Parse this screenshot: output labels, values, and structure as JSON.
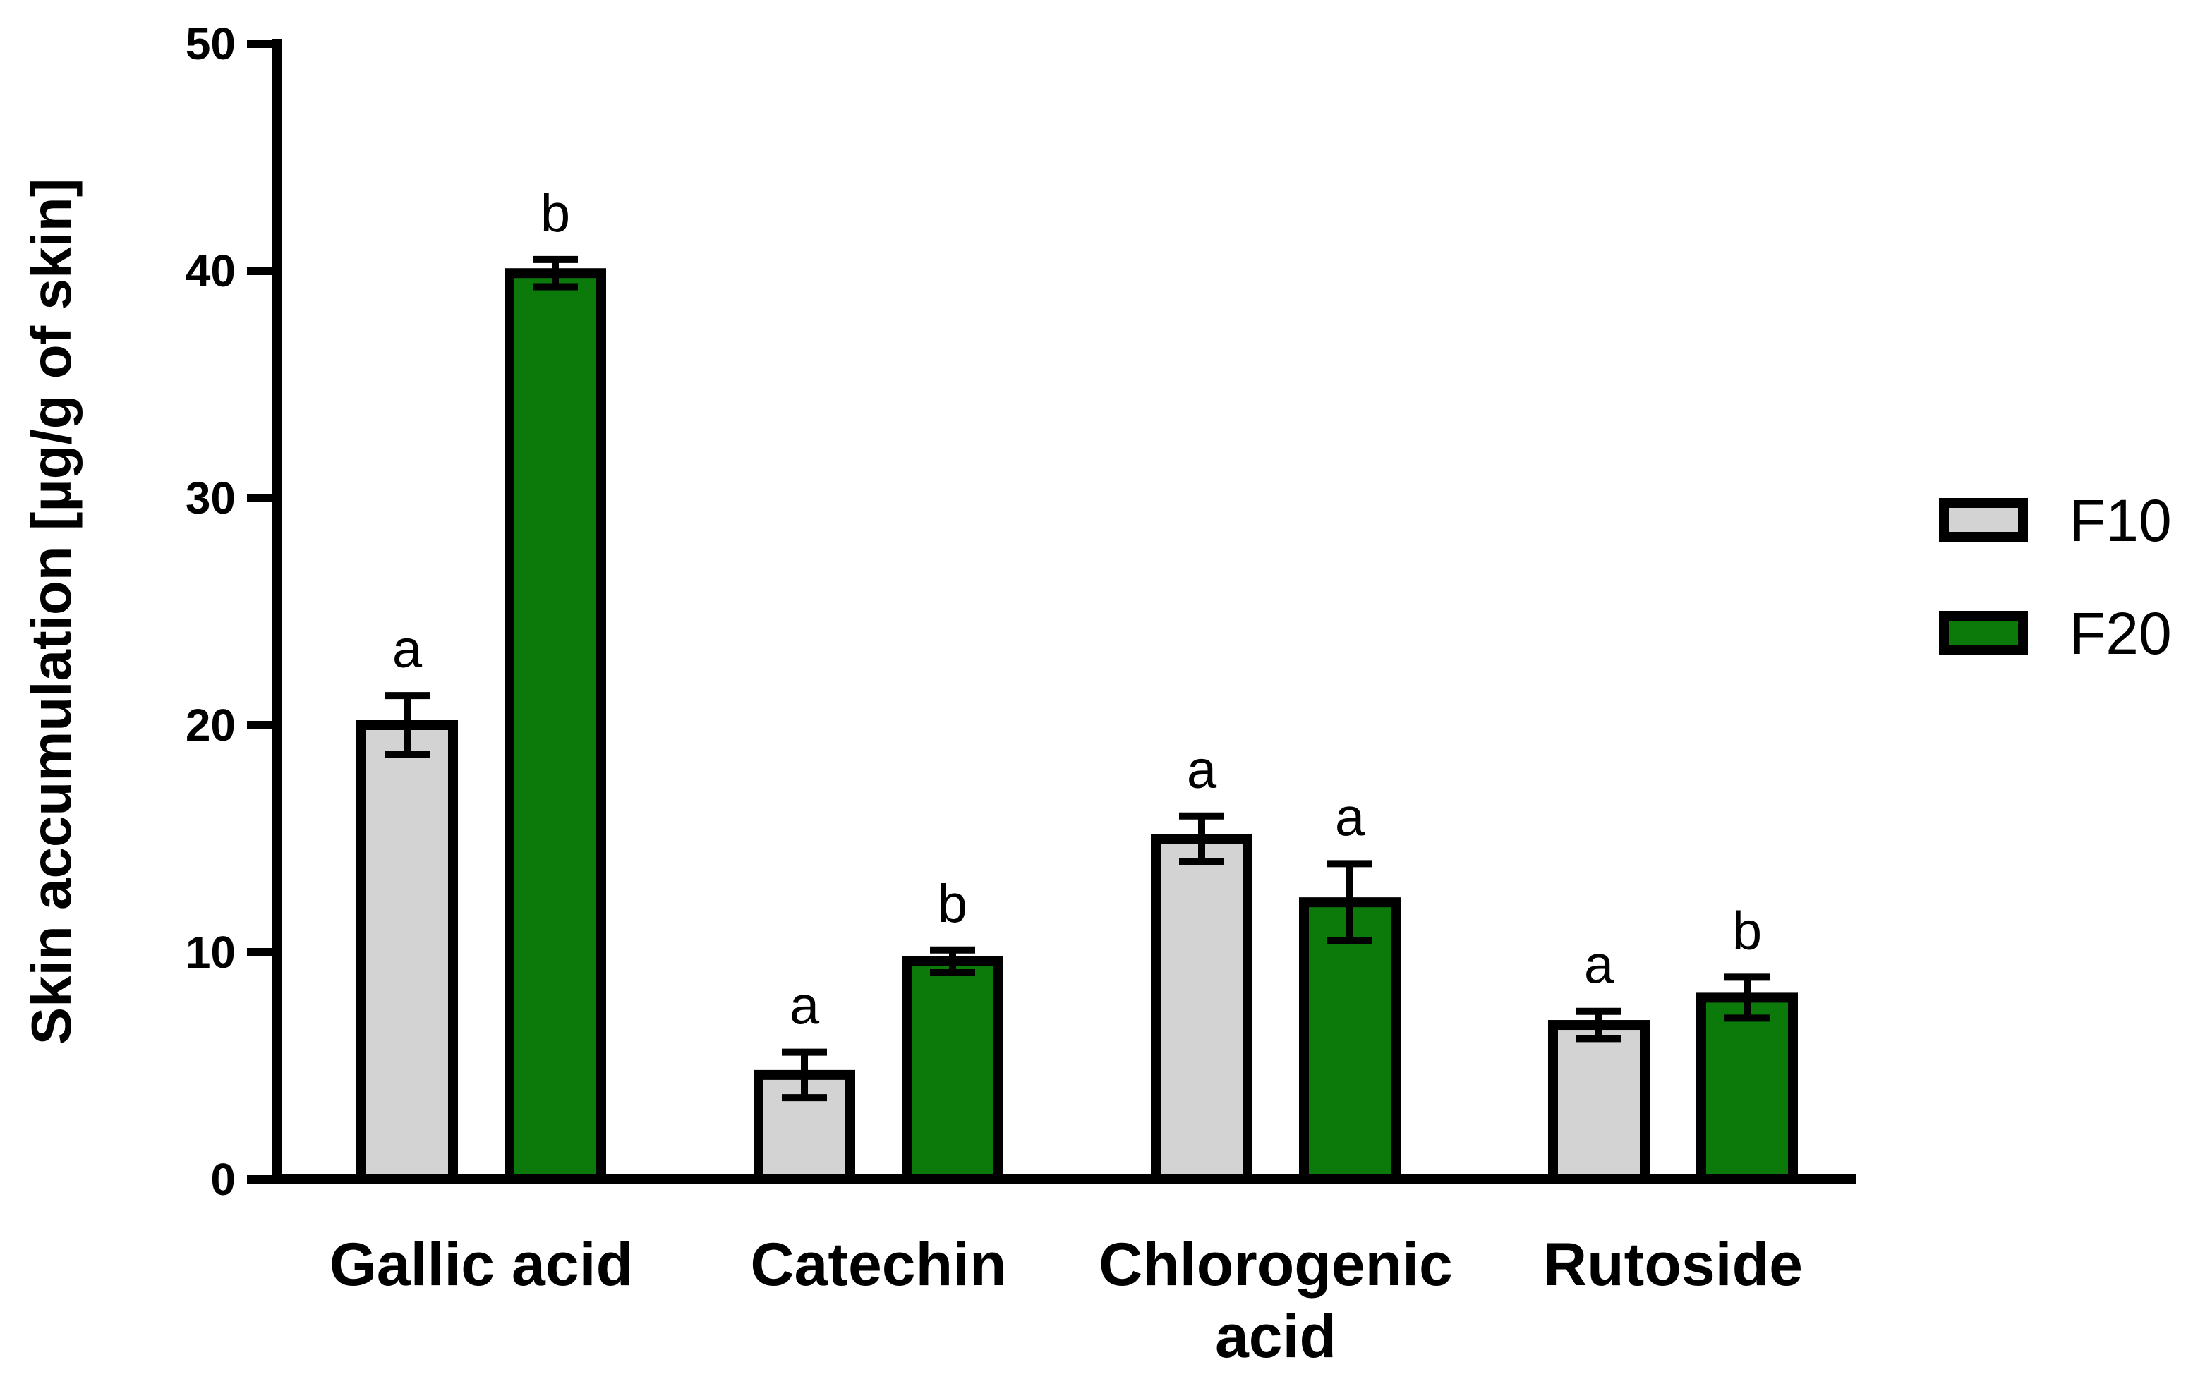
{
  "chart_data": {
    "type": "bar",
    "ylabel": "Skin accumulation [µg/g of skin]",
    "xlabel": "",
    "ylim": [
      0,
      50
    ],
    "yticks": [
      0,
      10,
      20,
      30,
      40,
      50
    ],
    "grid": false,
    "legend_position": "right",
    "categories": [
      [
        "Gallic acid"
      ],
      [
        "Catechin"
      ],
      [
        "Chlorogenic",
        "acid"
      ],
      [
        "Rutoside"
      ]
    ],
    "series": [
      {
        "name": "F10",
        "color": "#d3d3d3",
        "values": [
          20.0,
          4.6,
          15.0,
          6.8
        ],
        "errors": [
          1.3,
          1.0,
          1.0,
          0.6
        ],
        "significance": [
          "a",
          "a",
          "a",
          "a"
        ]
      },
      {
        "name": "F20",
        "color": "#0b7a0b",
        "values": [
          39.9,
          9.6,
          12.2,
          8.0
        ],
        "errors": [
          0.6,
          0.5,
          1.7,
          0.9
        ],
        "significance": [
          "b",
          "b",
          "a",
          "b"
        ]
      }
    ]
  }
}
